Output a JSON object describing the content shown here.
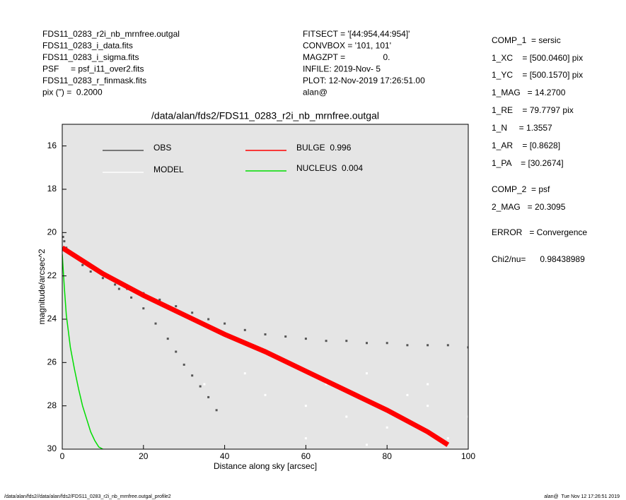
{
  "header": {
    "left": [
      "FDS11_0283_r2i_nb_mrnfree.outgal",
      "FDS11_0283_i_data.fits",
      "FDS11_0283_i_sigma.fits",
      "PSF     = psf_i11_over2.fits",
      "FDS11_0283_r_finmask.fits",
      "pix (\") =  0.2000"
    ],
    "middle": [
      "FITSECT = '[44:954,44:954]'",
      "CONVBOX = '101, 101'",
      "MAGZPT =                0.",
      "INFILE: 2019-Nov- 5",
      "PLOT: 12-Nov-2019 17:26:51.00",
      "alan@"
    ],
    "right": [
      "COMP_1  = sersic",
      "1_XC    = [500.0460] pix",
      "1_YC    = [500.1570] pix",
      "1_MAG   = 14.2700",
      "1_RE    = 79.7797 pix",
      "1_N     = 1.3557",
      "1_AR    = [0.8628]",
      "1_PA    = [30.2674]",
      "COMP_2  = psf",
      "2_MAG   = 20.3095",
      "ERROR   = Convergence",
      "Chi2/nu=      0.98438989"
    ]
  },
  "footer": {
    "left": "/data/alan/fds2//data/alan/fds2/FDS11_0283_r2i_nb_mrnfree.outgal_profile2",
    "right": "alan@  Tue Nov 12 17:26:51 2019"
  },
  "chart_data": {
    "type": "scatter",
    "title": "/data/alan/fds2/FDS11_0283_r2i_nb_mrnfree.outgal",
    "xlabel": "Distance along sky [arcsec]",
    "ylabel": "magnitude/arcsec^2",
    "xlim": [
      0,
      100
    ],
    "ylim": [
      30,
      15
    ],
    "xticks": [
      0,
      20,
      40,
      60,
      80,
      100
    ],
    "yticks": [
      16,
      18,
      20,
      22,
      24,
      26,
      28,
      30
    ],
    "background": "#e5e5e5",
    "series": [
      {
        "name": "OBS",
        "color": "#555555",
        "mode": "points",
        "x": [
          0.2,
          0.5,
          1,
          2,
          3,
          5,
          7,
          10,
          13,
          16,
          20,
          24,
          28,
          32,
          36,
          40,
          45,
          50,
          55,
          60,
          65,
          70,
          75,
          80,
          85,
          90,
          95,
          100,
          14,
          17,
          20,
          23,
          26,
          28,
          30,
          32,
          34,
          36,
          38
        ],
        "y": [
          20.2,
          20.4,
          20.7,
          20.9,
          21.1,
          21.5,
          21.8,
          22.1,
          22.4,
          22.6,
          22.8,
          23.1,
          23.4,
          23.7,
          24.0,
          24.2,
          24.5,
          24.7,
          24.8,
          24.9,
          25.0,
          25.0,
          25.1,
          25.1,
          25.2,
          25.2,
          25.2,
          25.3,
          22.6,
          23.0,
          23.5,
          24.2,
          24.9,
          25.5,
          26.1,
          26.6,
          27.1,
          27.6,
          28.2
        ]
      },
      {
        "name": "MODEL",
        "color": "#ffffff",
        "mode": "points",
        "x": [
          35,
          45,
          50,
          55,
          60,
          65,
          70,
          75,
          80,
          85,
          90,
          95,
          100,
          60,
          75,
          90
        ],
        "y": [
          27.0,
          26.5,
          27.5,
          26.0,
          28.0,
          27.0,
          28.5,
          26.5,
          29.0,
          27.5,
          28.0,
          29.5,
          28.5,
          29.5,
          29.8,
          27.0
        ]
      },
      {
        "name": "BULGE  0.996",
        "color": "#ff0000",
        "mode": "line",
        "x": [
          0,
          5,
          10,
          20,
          30,
          40,
          50,
          60,
          70,
          80,
          90,
          95
        ],
        "y": [
          20.7,
          21.3,
          21.9,
          22.9,
          23.8,
          24.7,
          25.5,
          26.4,
          27.3,
          28.2,
          29.2,
          29.8
        ]
      },
      {
        "name": "NUCLEUS  0.004",
        "color": "#00dd00",
        "mode": "line",
        "x": [
          0,
          0.5,
          1,
          2,
          3,
          4,
          5,
          6,
          7,
          8,
          9,
          10
        ],
        "y": [
          21.0,
          22.5,
          23.8,
          25.3,
          26.3,
          27.2,
          28.0,
          28.6,
          29.2,
          29.6,
          29.9,
          30.0
        ]
      }
    ]
  }
}
